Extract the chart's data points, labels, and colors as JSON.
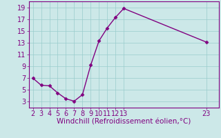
{
  "x": [
    2,
    3,
    4,
    5,
    6,
    7,
    8,
    9,
    10,
    11,
    12,
    13,
    23
  ],
  "y": [
    7,
    5.8,
    5.7,
    4.5,
    3.5,
    3.1,
    4.2,
    9.2,
    13.3,
    15.5,
    17.3,
    18.8,
    13.1
  ],
  "line_color": "#800080",
  "marker": "D",
  "marker_size": 2.5,
  "background_color": "#cce8e8",
  "grid_color": "#99cccc",
  "xlabel": "Windchill (Refroidissement éolien,°C)",
  "xlabel_color": "#800080",
  "xlabel_fontsize": 7.5,
  "tick_color": "#800080",
  "tick_fontsize": 7,
  "xlim": [
    1.5,
    24.5
  ],
  "ylim": [
    2,
    20
  ],
  "yticks": [
    3,
    5,
    7,
    9,
    11,
    13,
    15,
    17,
    19
  ],
  "xticks": [
    2,
    3,
    4,
    5,
    6,
    7,
    8,
    9,
    10,
    11,
    12,
    13,
    23
  ],
  "linewidth": 1.0
}
